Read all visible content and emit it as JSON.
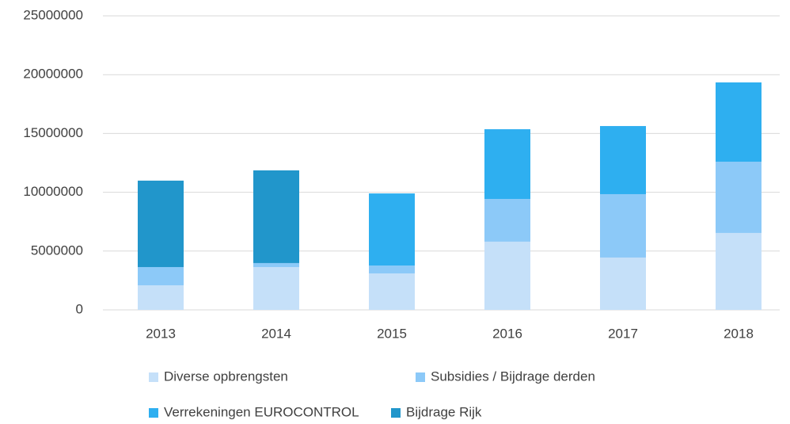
{
  "chart_data": {
    "type": "stacked_bar",
    "categories": [
      "2013",
      "2014",
      "2015",
      "2016",
      "2017",
      "2018"
    ],
    "series": [
      {
        "name": "Diverse opbrengsten",
        "color": "#c5e0f9",
        "values": [
          2090000,
          3640000,
          3100000,
          5800000,
          4450000,
          6540000
        ]
      },
      {
        "name": "Subsidies / Bijdrage derden",
        "color": "#8cc9f8",
        "values": [
          1550000,
          340000,
          670000,
          3630000,
          5390000,
          6060000
        ]
      },
      {
        "name": "Verrekeningen EUROCONTROL",
        "color": "#2eaff0",
        "values": [
          0,
          0,
          6130000,
          5930000,
          5790000,
          6740000
        ]
      },
      {
        "name": "Bijdrage Rijk",
        "color": "#2196cb",
        "values": [
          7350000,
          7880000,
          0,
          0,
          0,
          0
        ]
      }
    ],
    "ylim": [
      0,
      25000000
    ],
    "yticks": [
      0,
      5000000,
      10000000,
      15000000,
      20000000,
      25000000
    ],
    "grid": true
  }
}
